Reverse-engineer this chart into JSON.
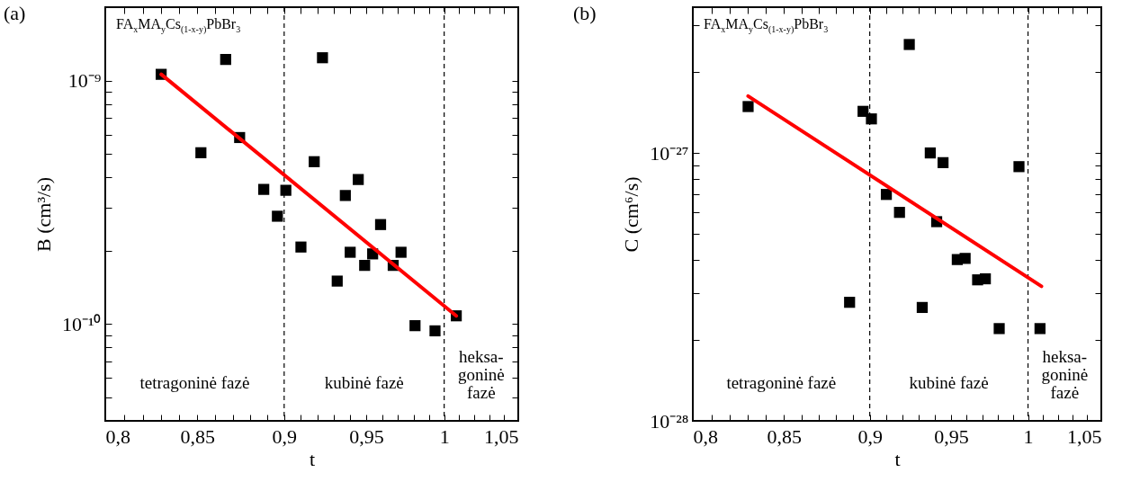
{
  "chart_data": [
    {
      "type": "scatter",
      "title": "(a)",
      "xlabel": "t",
      "ylabel": "B (cm³/s)",
      "log": "xy",
      "grid": false,
      "xlim": [
        0.8,
        1.05
      ],
      "ylim": [
        4e-11,
        2e-09
      ],
      "xticks": [
        {
          "value": 0.8,
          "label": "0,8"
        },
        {
          "value": 0.81,
          "label": null
        },
        {
          "value": 0.82,
          "label": null
        },
        {
          "value": 0.83,
          "label": null
        },
        {
          "value": 0.84,
          "label": null
        },
        {
          "value": 0.85,
          "label": "0,85"
        },
        {
          "value": 0.86,
          "label": null
        },
        {
          "value": 0.87,
          "label": null
        },
        {
          "value": 0.88,
          "label": null
        },
        {
          "value": 0.89,
          "label": null
        },
        {
          "value": 0.9,
          "label": "0,9"
        },
        {
          "value": 0.91,
          "label": null
        },
        {
          "value": 0.92,
          "label": null
        },
        {
          "value": 0.93,
          "label": null
        },
        {
          "value": 0.94,
          "label": null
        },
        {
          "value": 0.95,
          "label": "0,95"
        },
        {
          "value": 0.96,
          "label": null
        },
        {
          "value": 0.97,
          "label": null
        },
        {
          "value": 0.98,
          "label": null
        },
        {
          "value": 0.99,
          "label": null
        },
        {
          "value": 1,
          "label": "1"
        },
        {
          "value": 1.01,
          "label": null
        },
        {
          "value": 1.02,
          "label": null
        },
        {
          "value": 1.03,
          "label": null
        },
        {
          "value": 1.04,
          "label": null
        },
        {
          "value": 1.05,
          "label": "1,05"
        }
      ],
      "yticks": [
        {
          "value": 4e-11,
          "label": null
        },
        {
          "value": 5e-11,
          "label": null
        },
        {
          "value": 6e-11,
          "label": null
        },
        {
          "value": 7e-11,
          "label": null
        },
        {
          "value": 8e-11,
          "label": null
        },
        {
          "value": 9e-11,
          "label": null
        },
        {
          "value": 1e-10,
          "label": "10⁻¹⁰"
        },
        {
          "value": 2e-10,
          "label": null
        },
        {
          "value": 3e-10,
          "label": null
        },
        {
          "value": 4e-10,
          "label": null
        },
        {
          "value": 5e-10,
          "label": null
        },
        {
          "value": 6e-10,
          "label": null
        },
        {
          "value": 7e-10,
          "label": null
        },
        {
          "value": 8e-10,
          "label": null
        },
        {
          "value": 9e-10,
          "label": null
        },
        {
          "value": 1e-09,
          "label": "10⁻⁹"
        },
        {
          "value": 2e-09,
          "label": null
        }
      ],
      "series": [
        {
          "marker": "square",
          "color": "#000000",
          "x": [
            0.83,
            0.852,
            0.866,
            0.874,
            0.888,
            0.896,
            0.901,
            0.91,
            0.918,
            0.923,
            0.932,
            0.937,
            0.94,
            0.945,
            0.949,
            0.954,
            0.959,
            0.967,
            0.972,
            0.981,
            0.994,
            1.008
          ],
          "values": [
            1.06e-09,
            5.05e-10,
            1.22e-09,
            5.83e-10,
            3.57e-10,
            2.77e-10,
            3.54e-10,
            2.07e-10,
            4.64e-10,
            1.24e-09,
            1.5e-10,
            3.37e-10,
            1.97e-10,
            3.92e-10,
            1.74e-10,
            1.94e-10,
            2.56e-10,
            1.74e-10,
            1.97e-10,
            9.84e-11,
            9.37e-11,
            1.08e-10
          ]
        },
        {
          "type": "line",
          "color": "#ff0000",
          "x": [
            0.83,
            1.008
          ],
          "values": [
            1.06e-09,
            1.08e-10
          ]
        }
      ],
      "ref_lines": [
        {
          "axis": "x",
          "value": 0.9,
          "color": "#000000",
          "line_style": "dashed"
        },
        {
          "axis": "x",
          "value": 1,
          "color": "#000000",
          "line_style": "dashed"
        }
      ],
      "annotations": [
        "FA$_{x}$MA$_{y}$Cs$_{(1-x-y)}$PbBr$_{3}$",
        "tetragoninė fazė",
        "kubinė fazė",
        "heksa-\ngoninė\nfazė"
      ]
    },
    {
      "type": "scatter",
      "title": "(b)",
      "xlabel": "t",
      "ylabel": "C (cm⁶/s)",
      "log": "xy",
      "grid": false,
      "xlim": [
        0.8,
        1.05
      ],
      "ylim": [
        1e-28,
        3.5e-27
      ],
      "xticks": [
        {
          "value": 0.8,
          "label": "0,8"
        },
        {
          "value": 0.81,
          "label": null
        },
        {
          "value": 0.82,
          "label": null
        },
        {
          "value": 0.83,
          "label": null
        },
        {
          "value": 0.84,
          "label": null
        },
        {
          "value": 0.85,
          "label": "0,85"
        },
        {
          "value": 0.86,
          "label": null
        },
        {
          "value": 0.87,
          "label": null
        },
        {
          "value": 0.88,
          "label": null
        },
        {
          "value": 0.89,
          "label": null
        },
        {
          "value": 0.9,
          "label": "0,9"
        },
        {
          "value": 0.91,
          "label": null
        },
        {
          "value": 0.92,
          "label": null
        },
        {
          "value": 0.93,
          "label": null
        },
        {
          "value": 0.94,
          "label": null
        },
        {
          "value": 0.95,
          "label": "0,95"
        },
        {
          "value": 0.96,
          "label": null
        },
        {
          "value": 0.97,
          "label": null
        },
        {
          "value": 0.98,
          "label": null
        },
        {
          "value": 0.99,
          "label": null
        },
        {
          "value": 1,
          "label": "1"
        },
        {
          "value": 1.01,
          "label": null
        },
        {
          "value": 1.02,
          "label": null
        },
        {
          "value": 1.03,
          "label": null
        },
        {
          "value": 1.04,
          "label": null
        },
        {
          "value": 1.05,
          "label": "1,05"
        }
      ],
      "yticks": [
        {
          "value": 1e-28,
          "label": "10⁻²⁸"
        },
        {
          "value": 2e-28,
          "label": null
        },
        {
          "value": 3e-28,
          "label": null
        },
        {
          "value": 4e-28,
          "label": null
        },
        {
          "value": 5e-28,
          "label": null
        },
        {
          "value": 6e-28,
          "label": null
        },
        {
          "value": 7e-28,
          "label": null
        },
        {
          "value": 8e-28,
          "label": null
        },
        {
          "value": 9e-28,
          "label": null
        },
        {
          "value": 1e-27,
          "label": "10⁻²⁷"
        },
        {
          "value": 2e-27,
          "label": null
        },
        {
          "value": 3e-27,
          "label": null
        }
      ],
      "series": [
        {
          "marker": "square",
          "color": "#000000",
          "x": [
            0.83,
            0.888,
            0.896,
            0.901,
            0.91,
            0.918,
            0.924,
            0.932,
            0.937,
            0.941,
            0.945,
            0.954,
            0.959,
            0.967,
            0.972,
            0.981,
            0.994,
            1.008
          ],
          "values": [
            1.49e-27,
            2.77e-28,
            1.43e-27,
            1.34e-27,
            7e-28,
            6e-28,
            2.54e-27,
            2.65e-28,
            1e-27,
            5.54e-28,
            9.2e-28,
            4e-28,
            4.04e-28,
            3.36e-28,
            3.39e-28,
            2.21e-28,
            8.89e-28,
            2.21e-28
          ]
        },
        {
          "type": "line",
          "color": "#ff0000",
          "x": [
            0.83,
            1.009
          ],
          "values": [
            1.63e-27,
            3.18e-28
          ]
        }
      ],
      "ref_lines": [
        {
          "axis": "x",
          "value": 0.9,
          "color": "#000000",
          "line_style": "dashed"
        },
        {
          "axis": "x",
          "value": 1,
          "color": "#000000",
          "line_style": "dashed"
        }
      ],
      "annotations": [
        "FA$_{x}$MA$_{y}$Cs$_{(1-x-y)}$PbBr$_{3}$",
        "tetragoninė fazė",
        "kubinė fazė",
        "heksa-\ngoninė\nfazė"
      ]
    }
  ]
}
